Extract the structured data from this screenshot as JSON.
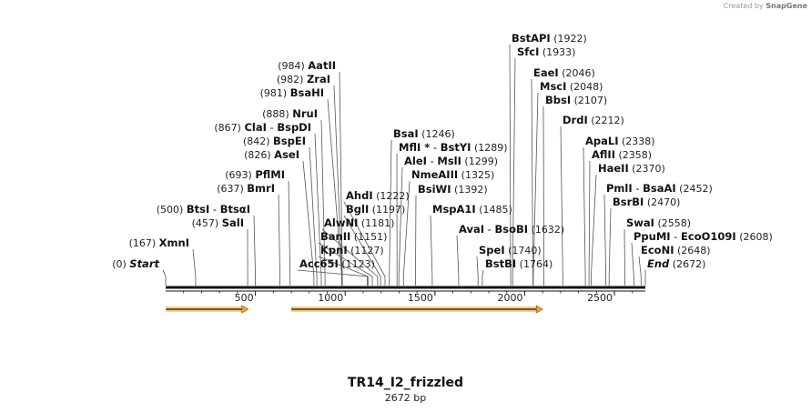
{
  "credit": {
    "prefix": "Created by",
    "brand": "SnapGene"
  },
  "sequence": {
    "name": "TR14_I2_frizzled",
    "length_label": "2672 bp",
    "length": 2672
  },
  "axis": {
    "ticks": [
      500,
      1000,
      1500,
      2000,
      2500
    ]
  },
  "features": [
    {
      "start": 1,
      "end": 460,
      "color": "#f5a623"
    },
    {
      "start": 700,
      "end": 2100,
      "color": "#f5a623"
    }
  ],
  "sites": [
    {
      "name": "BstAPI",
      "pos": "(1922)",
      "bp": 1922,
      "side": "right"
    },
    {
      "name": "SfcI",
      "pos": "(1933)",
      "bp": 1933,
      "side": "right"
    },
    {
      "name": "EaeI",
      "pos": "(2046)",
      "bp": 2046,
      "side": "right"
    },
    {
      "name": "MscI",
      "pos": "(2048)",
      "bp": 2048,
      "side": "right"
    },
    {
      "name": "BbsI",
      "pos": "(2107)",
      "bp": 2107,
      "side": "right"
    },
    {
      "name": "DrdI",
      "pos": "(2212)",
      "bp": 2212,
      "side": "right"
    },
    {
      "name": "ApaLI",
      "pos": "(2338)",
      "bp": 2338,
      "side": "right"
    },
    {
      "name": "AflII",
      "pos": "(2358)",
      "bp": 2358,
      "side": "right"
    },
    {
      "name": "HaeII",
      "pos": "(2370)",
      "bp": 2370,
      "side": "right"
    },
    {
      "name": "PmlI",
      "alt": "BsaAI",
      "pos": "(2452)",
      "bp": 2452,
      "side": "right"
    },
    {
      "name": "BsrBI",
      "pos": "(2470)",
      "bp": 2470,
      "side": "right"
    },
    {
      "name": "SwaI",
      "pos": "(2558)",
      "bp": 2558,
      "side": "right"
    },
    {
      "name": "PpuMI",
      "alt": "EcoO109I",
      "pos": "(2608)",
      "bp": 2608,
      "side": "right"
    },
    {
      "name": "EcoNI",
      "pos": "(2648)",
      "bp": 2648,
      "side": "right"
    },
    {
      "name": "End",
      "pos": "(2672)",
      "bp": 2672,
      "side": "right",
      "italic": true
    },
    {
      "name": "BsaI",
      "pos": "(1246)",
      "bp": 1246,
      "side": "right"
    },
    {
      "name": "MflI *",
      "alt": "BstYI",
      "pos": "(1289)",
      "bp": 1289,
      "side": "right"
    },
    {
      "name": "AleI",
      "alt": "MslI",
      "pos": "(1299)",
      "bp": 1299,
      "side": "right"
    },
    {
      "name": "NmeAIII",
      "pos": "(1325)",
      "bp": 1325,
      "side": "right"
    },
    {
      "name": "BsiWI",
      "pos": "(1392)",
      "bp": 1392,
      "side": "right"
    },
    {
      "name": "MspA1I",
      "pos": "(1485)",
      "bp": 1485,
      "side": "right"
    },
    {
      "name": "AvaI",
      "alt": "BsoBI",
      "pos": "(1632)",
      "bp": 1632,
      "side": "right"
    },
    {
      "name": "SpeI",
      "pos": "(1740)",
      "bp": 1740,
      "side": "right"
    },
    {
      "name": "BstBI",
      "pos": "(1764)",
      "bp": 1764,
      "side": "right"
    },
    {
      "name": "AatII",
      "pos": "(984)",
      "bp": 984,
      "side": "left"
    },
    {
      "name": "ZraI",
      "pos": "(982)",
      "bp": 982,
      "side": "left"
    },
    {
      "name": "BsaHI",
      "pos": "(981)",
      "bp": 981,
      "side": "left"
    },
    {
      "name": "NruI",
      "pos": "(888)",
      "bp": 888,
      "side": "left"
    },
    {
      "name": "ClaI",
      "alt": "BspDI",
      "pos": "(867)",
      "bp": 867,
      "side": "left"
    },
    {
      "name": "BspEI",
      "pos": "(842)",
      "bp": 842,
      "side": "left"
    },
    {
      "name": "AseI",
      "pos": "(826)",
      "bp": 826,
      "side": "left"
    },
    {
      "name": "PflMI",
      "pos": "(693)",
      "bp": 693,
      "side": "left"
    },
    {
      "name": "BmrI",
      "pos": "(637)",
      "bp": 637,
      "side": "left"
    },
    {
      "name": "BtsI",
      "alt": "BtsαI",
      "pos": "(500)",
      "bp": 500,
      "side": "left"
    },
    {
      "name": "SalI",
      "pos": "(457)",
      "bp": 457,
      "side": "left"
    },
    {
      "name": "XmnI",
      "pos": "(167)",
      "bp": 167,
      "side": "left"
    },
    {
      "name": "Start",
      "pos": "(0)",
      "bp": 0,
      "side": "left",
      "italic": true
    },
    {
      "name": "AhdI",
      "pos": "(1222)",
      "bp": 1222,
      "side": "left"
    },
    {
      "name": "BglI",
      "pos": "(1197)",
      "bp": 1197,
      "side": "left"
    },
    {
      "name": "AlwNI",
      "pos": "(1181)",
      "bp": 1181,
      "side": "left"
    },
    {
      "name": "BanII",
      "pos": "(1151)",
      "bp": 1151,
      "side": "left"
    },
    {
      "name": "KpnI",
      "pos": "(1127)",
      "bp": 1127,
      "side": "left"
    },
    {
      "name": "Acc65I",
      "pos": "(1123)",
      "bp": 1123,
      "side": "left"
    }
  ]
}
